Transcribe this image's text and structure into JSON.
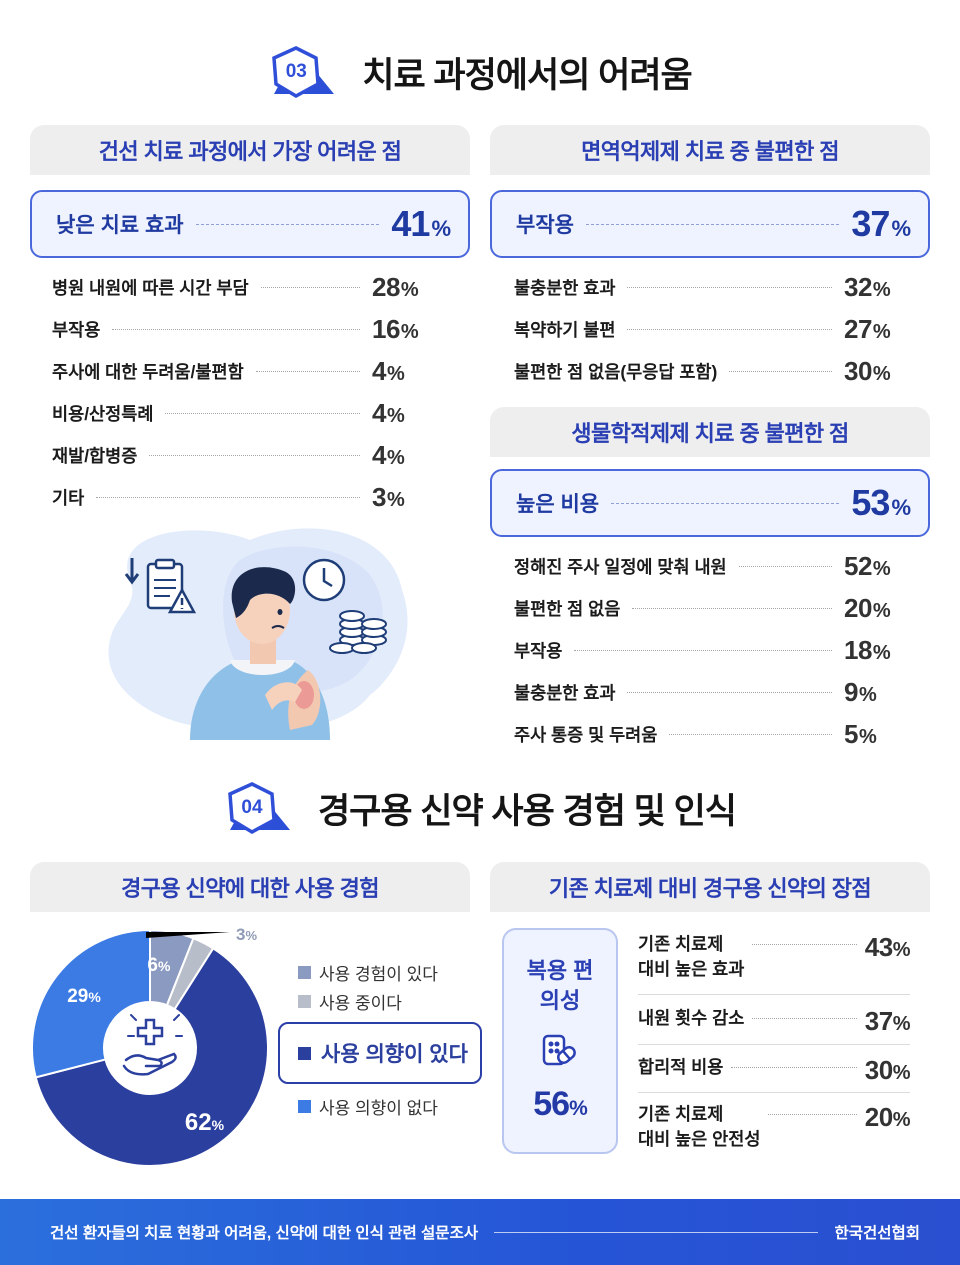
{
  "section3": {
    "number": "03",
    "title": "치료 과정에서의 어려움",
    "left_panel": {
      "header": "건선 치료 과정에서 가장 어려운 점",
      "highlight": {
        "label": "낮은 치료 효과",
        "value": "41",
        "unit": "%"
      },
      "rows": [
        {
          "label": "병원 내원에 따른 시간 부담",
          "value": "28",
          "unit": "%"
        },
        {
          "label": "부작용",
          "value": "16",
          "unit": "%"
        },
        {
          "label": "주사에 대한 두려움/불편함",
          "value": "4",
          "unit": "%"
        },
        {
          "label": "비용/산정특례",
          "value": "4",
          "unit": "%"
        },
        {
          "label": "재발/합병증",
          "value": "4",
          "unit": "%"
        },
        {
          "label": "기타",
          "value": "3",
          "unit": "%"
        }
      ]
    },
    "right_panel_1": {
      "header": "면역억제제 치료 중 불편한 점",
      "highlight": {
        "label": "부작용",
        "value": "37",
        "unit": "%"
      },
      "rows": [
        {
          "label": "불충분한 효과",
          "value": "32",
          "unit": "%"
        },
        {
          "label": "복약하기 불편",
          "value": "27",
          "unit": "%"
        },
        {
          "label": "불편한 점 없음(무응답 포함)",
          "value": "30",
          "unit": "%"
        }
      ]
    },
    "right_panel_2": {
      "header": "생물학적제제 치료 중 불편한 점",
      "highlight": {
        "label": "높은 비용",
        "value": "53",
        "unit": "%"
      },
      "rows": [
        {
          "label": "정해진 주사 일정에 맞춰 내원",
          "value": "52",
          "unit": "%"
        },
        {
          "label": "불편한 점 없음",
          "value": "20",
          "unit": "%"
        },
        {
          "label": "부작용",
          "value": "18",
          "unit": "%"
        },
        {
          "label": "불충분한 효과",
          "value": "9",
          "unit": "%"
        },
        {
          "label": "주사 통증 및 두려움",
          "value": "5",
          "unit": "%"
        }
      ]
    }
  },
  "section4": {
    "number": "04",
    "title": "경구용 신약 사용 경험 및 인식",
    "left_panel": {
      "header": "경구용 신약에 대한 사용 경험",
      "chart_data": {
        "type": "pie",
        "series": [
          {
            "name": "사용 경험이 있다",
            "value": 6,
            "label": "6",
            "color": "#8a9ac0"
          },
          {
            "name": "사용 중이다",
            "value": 3,
            "label": "3",
            "color": "#b8bec9"
          },
          {
            "name": "사용 의향이 있다",
            "value": 62,
            "label": "62",
            "color": "#2b3f9e"
          },
          {
            "name": "사용 의향이 없다",
            "value": 29,
            "label": "29",
            "color": "#3b7be3"
          }
        ],
        "unit": "%"
      }
    },
    "right_panel": {
      "header": "기존 치료제 대비 경구용 신약의 장점",
      "highlight": {
        "label": "복용 편의성",
        "value": "56",
        "unit": "%"
      },
      "rows": [
        {
          "label_line1": "기존 치료제",
          "label_line2": "대비 높은 효과",
          "value": "43",
          "unit": "%"
        },
        {
          "label_line1": "내원 횟수 감소",
          "label_line2": "",
          "value": "37",
          "unit": "%"
        },
        {
          "label_line1": "합리적 비용",
          "label_line2": "",
          "value": "30",
          "unit": "%"
        },
        {
          "label_line1": "기존 치료제",
          "label_line2": "대비 높은 안전성",
          "value": "20",
          "unit": "%"
        }
      ]
    }
  },
  "footer": {
    "left": "건선 환자들의 치료 현황과 어려움, 신약에 대한 인식 관련 설문조사",
    "right": "한국건선협회"
  },
  "colors": {
    "accent": "#2a3fb3",
    "highlight_bg": "#eff3ff",
    "footer": "#2b5fd8"
  }
}
